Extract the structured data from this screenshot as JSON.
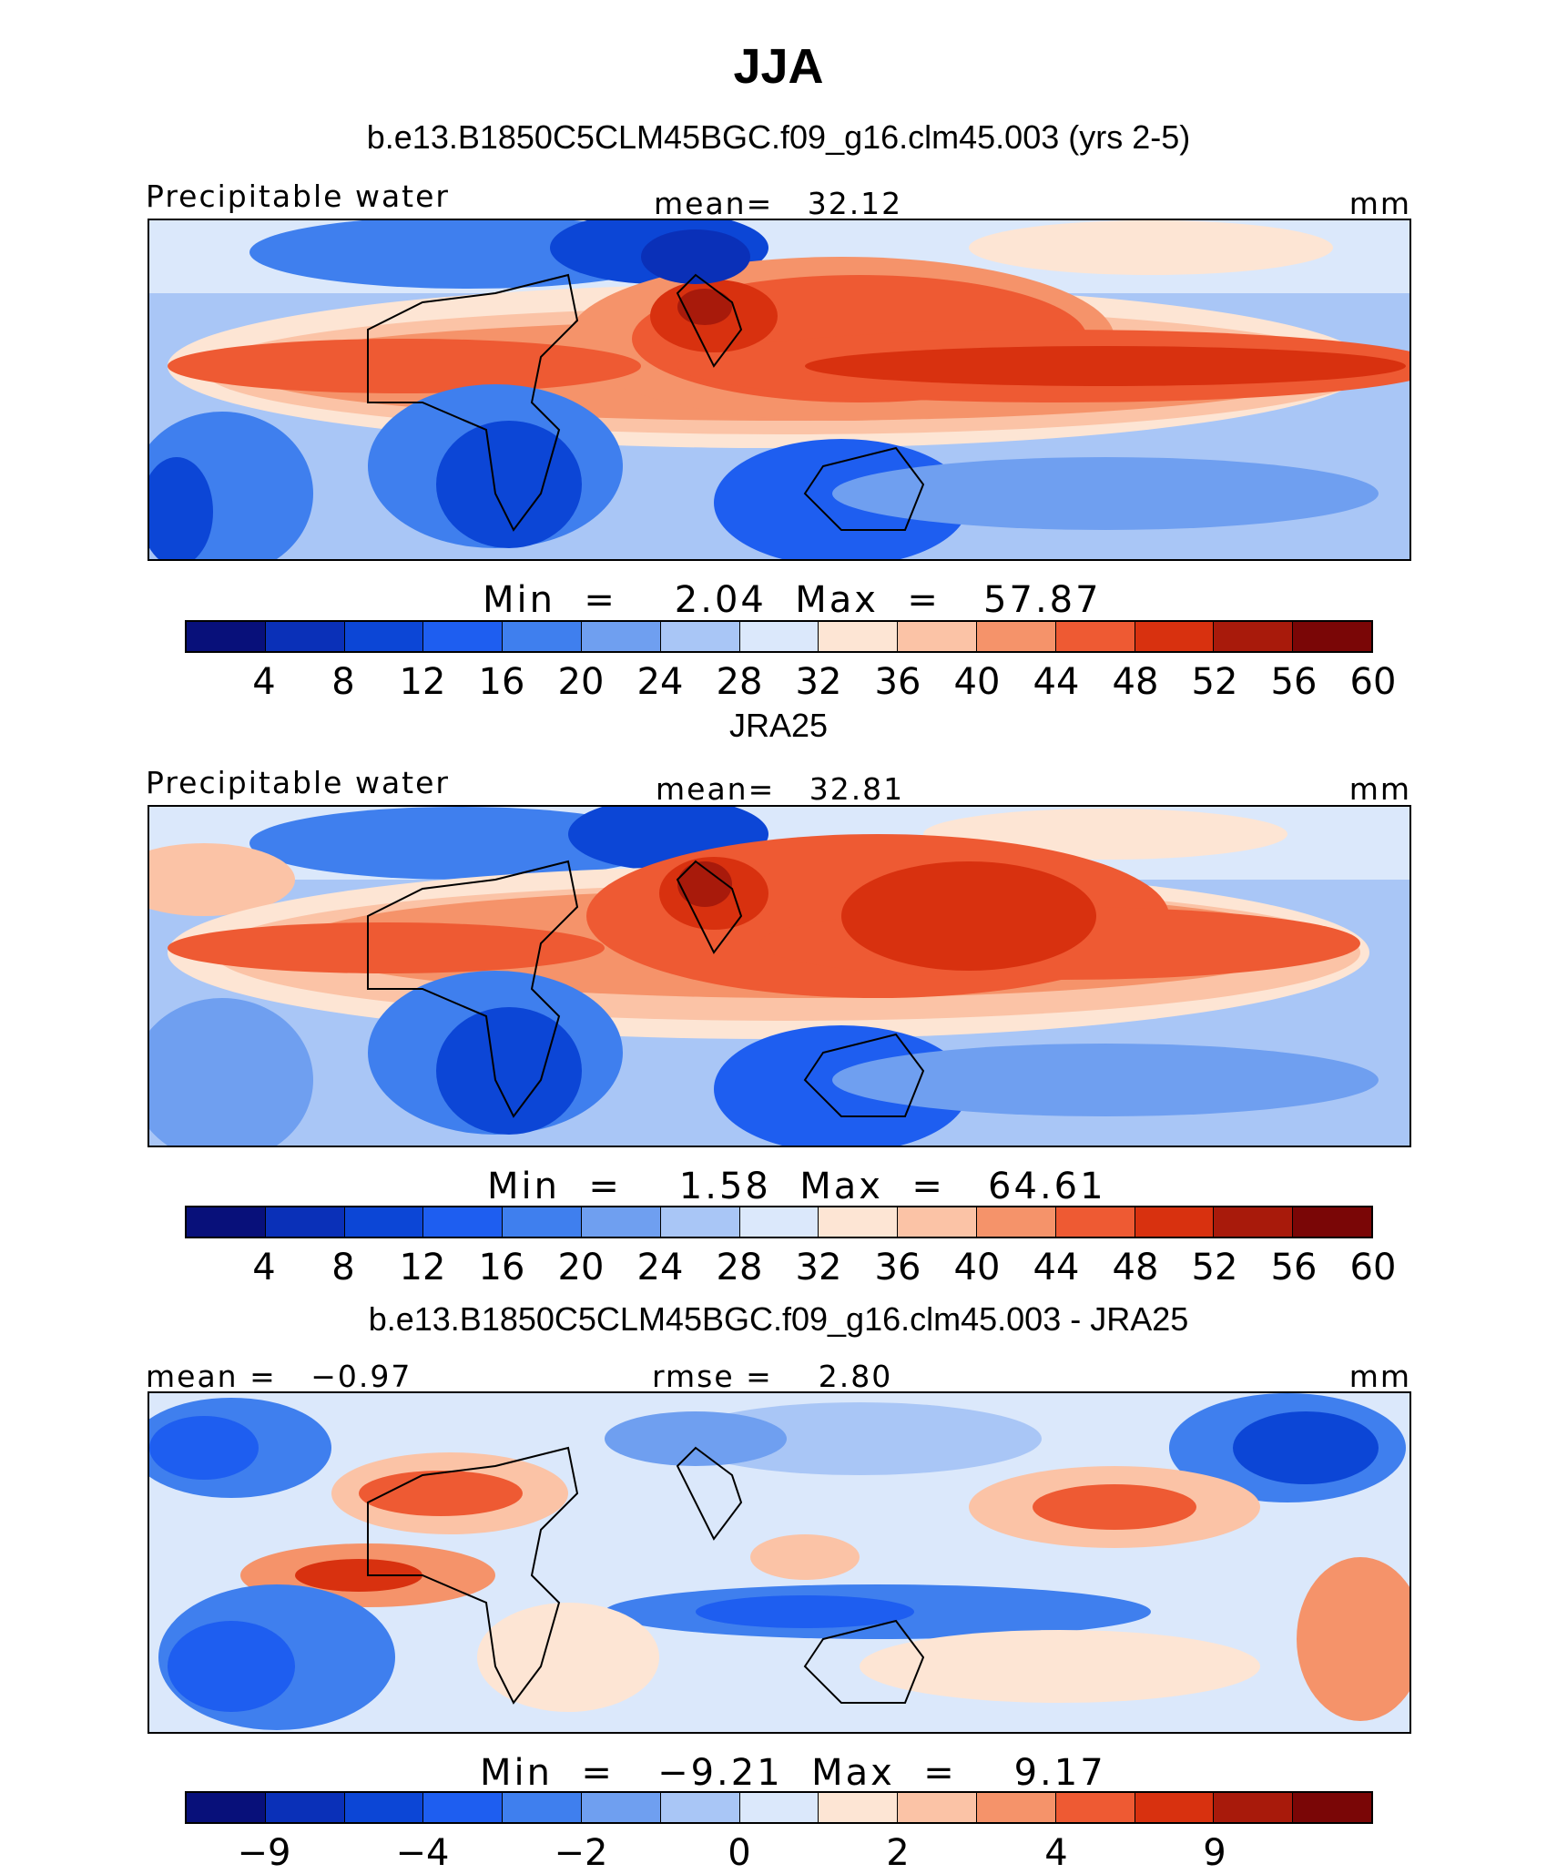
{
  "figure": {
    "title": "JJA",
    "colors": [
      "#08107a",
      "#0a30b8",
      "#0c46d6",
      "#1e5ef0",
      "#3f7fee",
      "#6f9ff0",
      "#a9c6f6",
      "#dbe8fb",
      "#fde5d4",
      "#fbc3a6",
      "#f5936a",
      "#ee5a33",
      "#d8310f",
      "#a81a0b",
      "#7a0606"
    ]
  },
  "panels": [
    {
      "title": "b.e13.B1850C5CLM45BGC.f09_g16.clm45.003 (yrs 2-5)",
      "left_label": "Precipitable water",
      "center_label": "mean=   32.12",
      "right_label": "mm",
      "minmax": "Min  =    2.04  Max  =   57.87",
      "ticks": [
        "4",
        "8",
        "12",
        "16",
        "20",
        "24",
        "28",
        "32",
        "36",
        "40",
        "44",
        "48",
        "52",
        "56",
        "60"
      ]
    },
    {
      "title": "JRA25",
      "left_label": "Precipitable water",
      "center_label": "mean=   32.81",
      "right_label": "mm",
      "minmax": "Min  =    1.58  Max  =   64.61",
      "ticks": [
        "4",
        "8",
        "12",
        "16",
        "20",
        "24",
        "28",
        "32",
        "36",
        "40",
        "44",
        "48",
        "52",
        "56",
        "60"
      ]
    },
    {
      "title": "b.e13.B1850C5CLM45BGC.f09_g16.clm45.003 - JRA25",
      "left_label": "mean =   −0.97",
      "center_label": "rmse =    2.80",
      "right_label": "mm",
      "minmax": "Min  =   −9.21  Max  =    9.17",
      "ticks": [
        "−9",
        "",
        "−4",
        "",
        "−2",
        "",
        "0",
        "",
        "2",
        "",
        "4",
        "",
        "9",
        ""
      ]
    }
  ]
}
